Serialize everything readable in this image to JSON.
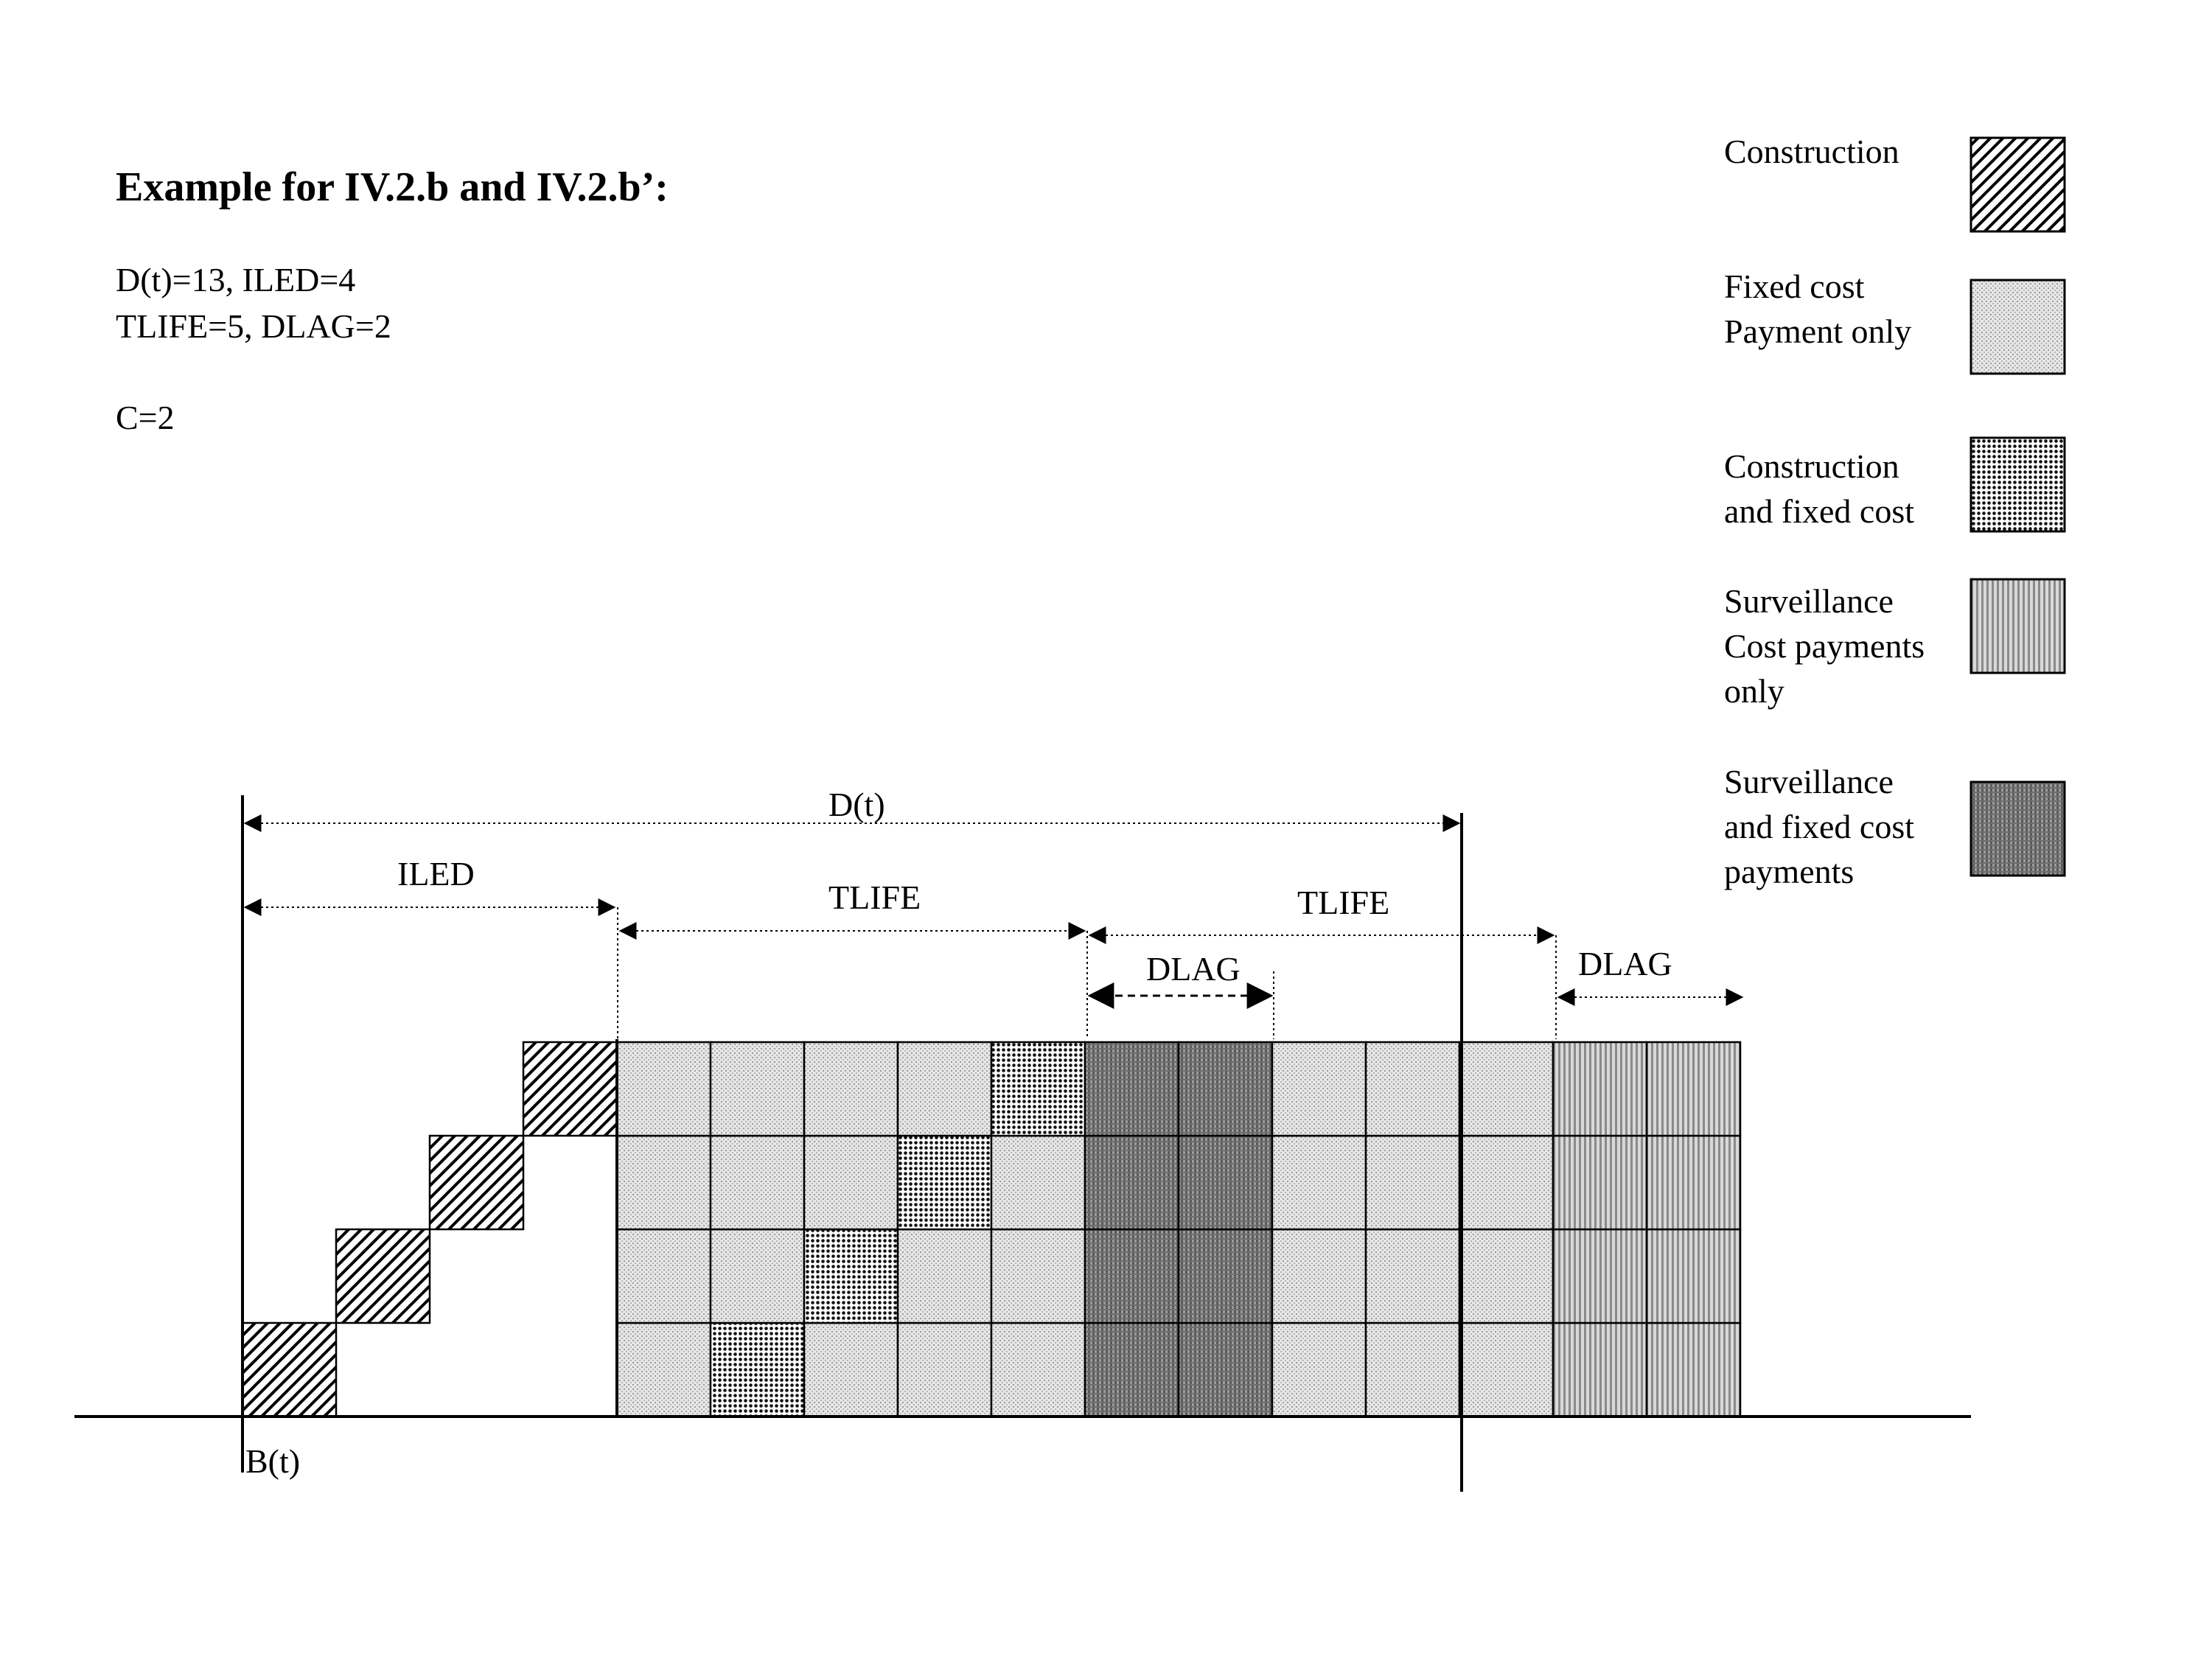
{
  "header": {
    "title": "Example for IV.2.b and IV.2.b’:",
    "param_line1": "D(t)=13, ILED=4",
    "param_line2": "TLIFE=5, DLAG=2",
    "param_line3": "C=2"
  },
  "legend": {
    "items": [
      {
        "key": "construction",
        "lines": [
          "Construction"
        ]
      },
      {
        "key": "fixed",
        "lines": [
          "Fixed cost",
          "Payment only"
        ]
      },
      {
        "key": "construction_fixed",
        "lines": [
          "Construction",
          "and fixed cost"
        ]
      },
      {
        "key": "surveillance",
        "lines": [
          "Surveillance",
          "Cost payments",
          "only"
        ]
      },
      {
        "key": "surveillance_fixed",
        "lines": [
          "Surveillance",
          "and fixed cost",
          "payments"
        ]
      }
    ]
  },
  "dimensions": {
    "dt": "D(t)",
    "iled": "ILED",
    "tlife1": "TLIFE",
    "tlife2": "TLIFE",
    "dlag1": "DLAG",
    "dlag2": "DLAG",
    "bt": "B(t)"
  },
  "grid": {
    "rows_bottom_to_top": [
      [
        "construction",
        null,
        null,
        null,
        "fixed",
        "construction_fixed",
        "fixed",
        "fixed",
        "fixed",
        "surveillance_fixed",
        "surveillance_fixed",
        "fixed",
        "fixed",
        "fixed",
        "surveillance",
        "surveillance"
      ],
      [
        null,
        "construction",
        null,
        null,
        "fixed",
        "fixed",
        "construction_fixed",
        "fixed",
        "fixed",
        "surveillance_fixed",
        "surveillance_fixed",
        "fixed",
        "fixed",
        "fixed",
        "surveillance",
        "surveillance"
      ],
      [
        null,
        null,
        "construction",
        null,
        "fixed",
        "fixed",
        "fixed",
        "construction_fixed",
        "fixed",
        "surveillance_fixed",
        "surveillance_fixed",
        "fixed",
        "fixed",
        "fixed",
        "surveillance",
        "surveillance"
      ],
      [
        null,
        null,
        null,
        "construction",
        "fixed",
        "fixed",
        "fixed",
        "fixed",
        "construction_fixed",
        "surveillance_fixed",
        "surveillance_fixed",
        "fixed",
        "fixed",
        "fixed",
        "surveillance",
        "surveillance"
      ]
    ]
  }
}
